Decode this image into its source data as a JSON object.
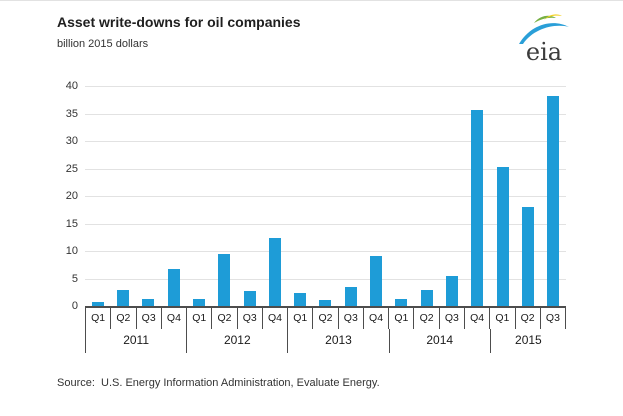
{
  "header": {
    "title": "Asset write-downs for oil companies",
    "subtitle": "billion 2015 dollars",
    "logo_text": "eia"
  },
  "chart_data": {
    "type": "bar",
    "title": "Asset write-downs for oil companies",
    "ylabel": "billion 2015 dollars",
    "xlabel": "",
    "ylim": [
      0,
      40
    ],
    "yticks": [
      0,
      5,
      10,
      15,
      20,
      25,
      30,
      35,
      40
    ],
    "grid": true,
    "legend": false,
    "bar_color": "#1e9cd7",
    "categories": [
      "Q1",
      "Q2",
      "Q3",
      "Q4",
      "Q1",
      "Q2",
      "Q3",
      "Q4",
      "Q1",
      "Q2",
      "Q3",
      "Q4",
      "Q1",
      "Q2",
      "Q3",
      "Q4",
      "Q1",
      "Q2",
      "Q3"
    ],
    "values": [
      0.8,
      3.0,
      1.2,
      6.7,
      1.2,
      9.4,
      2.7,
      12.4,
      2.3,
      1.1,
      3.4,
      9.1,
      1.2,
      2.9,
      5.4,
      35.6,
      25.2,
      18.0,
      38.1
    ],
    "year_groups": [
      {
        "label": "2011",
        "span": 4
      },
      {
        "label": "2012",
        "span": 4
      },
      {
        "label": "2013",
        "span": 4
      },
      {
        "label": "2014",
        "span": 4
      },
      {
        "label": "2015",
        "span": 3
      }
    ]
  },
  "footer": {
    "source": "Source:  U.S. Energy Information Administration, Evaluate Energy."
  },
  "colors": {
    "bar": "#1e9cd7",
    "gridline": "#e2e2e2",
    "axis": "#4d4d4d",
    "logo_blue": "#2a9fd8",
    "logo_green": "#76b043",
    "logo_yellow": "#f5d226"
  }
}
